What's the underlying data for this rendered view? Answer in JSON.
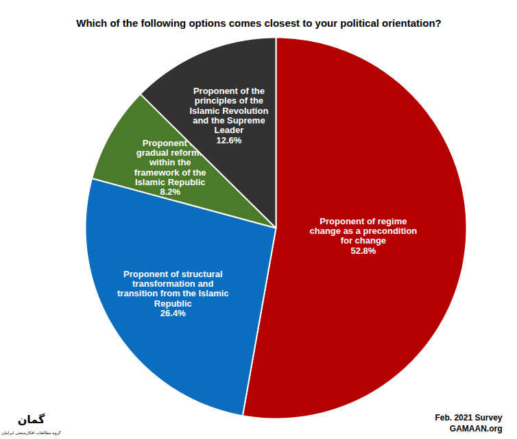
{
  "chart_data": {
    "type": "pie",
    "title": "Which of the following options comes closest to your political orientation?",
    "categories": [
      "Proponent of regime change as a precondition for change",
      "Proponent of structural transformation and transition from the Islamic Republic",
      "Proponent of gradual reforms within the framework of the Islamic Republic",
      "Proponent of the principles of the Islamic Revolution and the Supreme Leader"
    ],
    "values": [
      52.8,
      26.4,
      8.2,
      12.6
    ],
    "value_labels": [
      "52.8%",
      "26.4%",
      "8.2%",
      "12.6%"
    ],
    "colors": [
      "#b40000",
      "#0c6cbd",
      "#4b7b2a",
      "#323232"
    ],
    "data_labels": true,
    "annotations": [
      "Feb. 2021 Survey",
      "GAMAAN.org",
      "گمان",
      "گروه مطالعات افکارسنجی ایرانیان"
    ]
  }
}
